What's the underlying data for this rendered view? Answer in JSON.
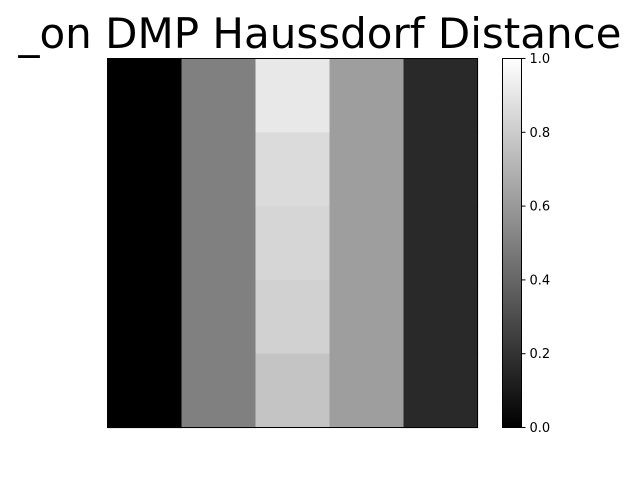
{
  "chart_data": {
    "type": "heatmap",
    "title": "_on DMP Haussdorf Distance",
    "xlabel": "",
    "ylabel": "",
    "colormap": "gray",
    "vmin": 0.0,
    "vmax": 1.0,
    "rows": 5,
    "cols": 5,
    "values": [
      [
        0.0,
        0.5,
        0.91,
        0.62,
        0.16
      ],
      [
        0.0,
        0.5,
        0.86,
        0.62,
        0.16
      ],
      [
        0.0,
        0.5,
        0.84,
        0.62,
        0.16
      ],
      [
        0.0,
        0.5,
        0.82,
        0.62,
        0.16
      ],
      [
        0.0,
        0.5,
        0.77,
        0.62,
        0.16
      ]
    ],
    "colorbar": {
      "ticks": [
        0.0,
        0.2,
        0.4,
        0.6,
        0.8,
        1.0
      ],
      "tick_labels": [
        "0.0",
        "0.2",
        "0.4",
        "0.6",
        "0.8",
        "1.0"
      ]
    },
    "show_axis_ticks": false,
    "grid": false
  }
}
